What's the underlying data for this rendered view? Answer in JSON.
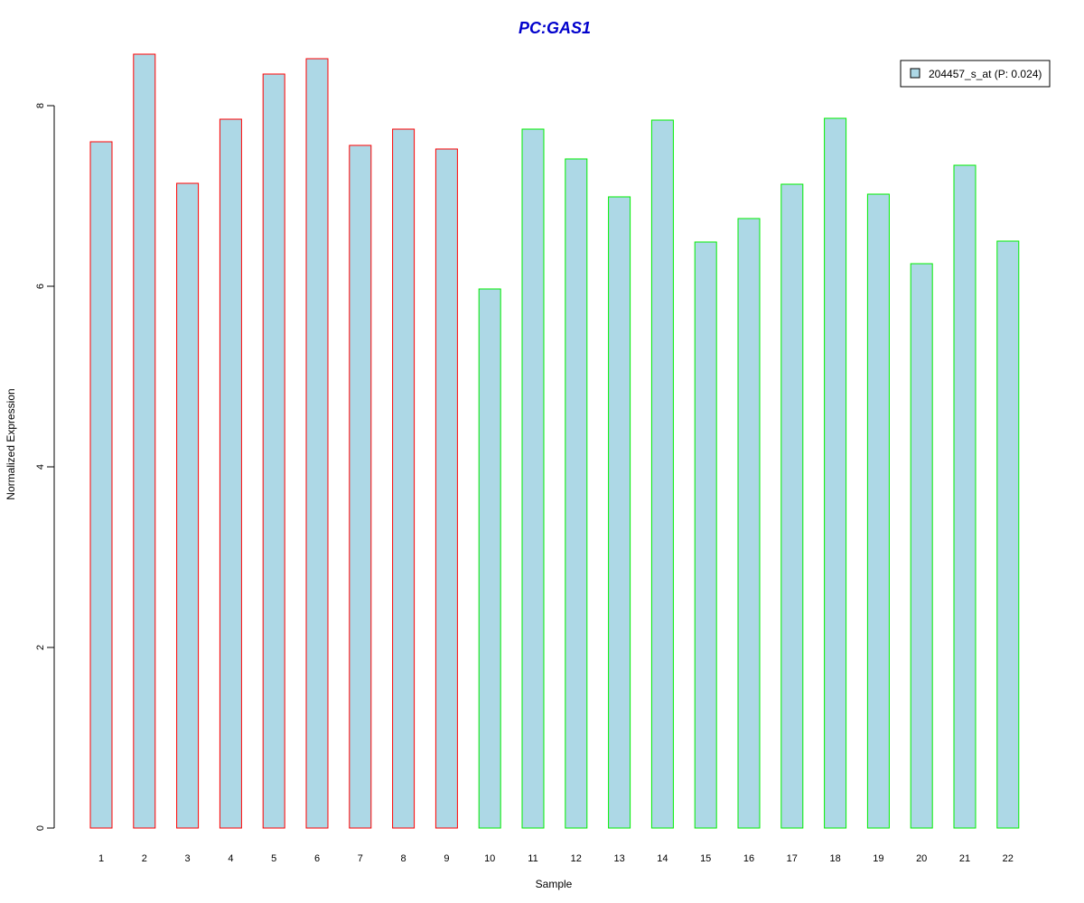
{
  "chart_data": {
    "type": "bar",
    "title": "PC:GAS1",
    "xlabel": "Sample",
    "ylabel": "Normalized Expression",
    "ylim": [
      0,
      8.6
    ],
    "yticks": [
      0,
      2,
      4,
      6,
      8
    ],
    "grid": false,
    "legend_position": "top-right",
    "categories": [
      "1",
      "2",
      "3",
      "4",
      "5",
      "6",
      "7",
      "8",
      "9",
      "10",
      "11",
      "12",
      "13",
      "14",
      "15",
      "16",
      "17",
      "18",
      "19",
      "20",
      "21",
      "22"
    ],
    "series": [
      {
        "name": "204457_s_at (P: 0.024)",
        "values": [
          7.6,
          8.57,
          7.14,
          7.85,
          8.35,
          8.52,
          7.56,
          7.74,
          7.52,
          5.97,
          7.74,
          7.41,
          6.99,
          7.84,
          6.49,
          6.75,
          7.13,
          7.86,
          7.02,
          6.25,
          7.34,
          6.5
        ]
      }
    ],
    "groups": [
      {
        "samples": [
          1,
          2,
          3,
          4,
          5,
          6,
          7,
          8,
          9
        ],
        "border_color": "#ff0000"
      },
      {
        "samples": [
          10,
          11,
          12,
          13,
          14,
          15,
          16,
          17,
          18,
          19,
          20,
          21,
          22
        ],
        "border_color": "#00ee00"
      }
    ],
    "colors": {
      "bar_fill": "#add8e6",
      "title": "#0000cc",
      "axis": "#000000"
    }
  }
}
